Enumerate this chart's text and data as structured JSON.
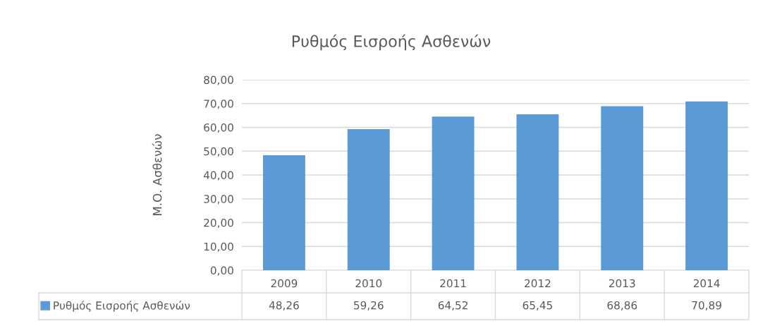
{
  "chart_data": {
    "type": "bar",
    "title": "Ρυθμός Εισροής Ασθενών",
    "ylabel": "Μ.Ο. Ασθενών",
    "categories": [
      "2009",
      "2010",
      "2011",
      "2012",
      "2013",
      "2014"
    ],
    "series": [
      {
        "name": "Ρυθμός Εισροής Ασθενών",
        "color": "#5b9bd5",
        "values": [
          48.26,
          59.26,
          64.52,
          65.45,
          68.86,
          70.89
        ],
        "value_labels": [
          "48,26",
          "59,26",
          "64,52",
          "65,45",
          "68,86",
          "70,89"
        ]
      }
    ],
    "ylim": [
      0,
      80
    ],
    "yticks": [
      {
        "value": 0,
        "label": "0,00"
      },
      {
        "value": 10,
        "label": "10,00"
      },
      {
        "value": 20,
        "label": "20,00"
      },
      {
        "value": 30,
        "label": "30,00"
      },
      {
        "value": 40,
        "label": "40,00"
      },
      {
        "value": 50,
        "label": "50,00"
      },
      {
        "value": 60,
        "label": "60,00"
      },
      {
        "value": 70,
        "label": "70,00"
      },
      {
        "value": 80,
        "label": "80,00"
      }
    ],
    "grid": "y",
    "legend": "bottom"
  }
}
